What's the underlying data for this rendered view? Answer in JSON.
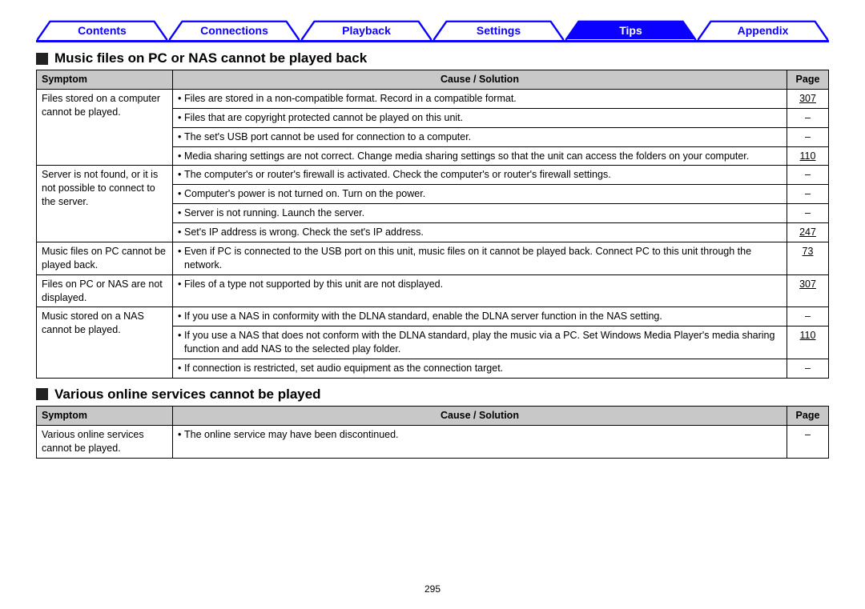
{
  "tabs": [
    {
      "label": "Contents",
      "active": false
    },
    {
      "label": "Connections",
      "active": false
    },
    {
      "label": "Playback",
      "active": false
    },
    {
      "label": "Settings",
      "active": false
    },
    {
      "label": "Tips",
      "active": true
    },
    {
      "label": "Appendix",
      "active": false
    }
  ],
  "colors": {
    "tab_stroke": "#0b00ff",
    "tab_active_fill": "#0b00ff",
    "tab_inactive_text": "#0b00ff",
    "tab_active_text": "#ffffff",
    "table_header_bg": "#c8c8c8",
    "border": "#000000"
  },
  "page_number": "295",
  "sections": [
    {
      "title": "Music files on PC or NAS cannot be played back",
      "headers": {
        "symptom": "Symptom",
        "cause": "Cause / Solution",
        "page": "Page"
      },
      "groups": [
        {
          "symptom": "Files stored on a computer cannot be played.",
          "rows": [
            {
              "cause": "Files are stored in a non-compatible format. Record in a compatible format.",
              "page": "307",
              "link": true
            },
            {
              "cause": "Files that are copyright protected cannot be played on this unit.",
              "page": "–",
              "link": false
            },
            {
              "cause": "The set's USB port cannot be used for connection to a computer.",
              "page": "–",
              "link": false
            },
            {
              "cause": "Media sharing settings are not correct. Change media sharing settings so that the unit can access the folders on your computer.",
              "page": "110",
              "link": true
            }
          ]
        },
        {
          "symptom": "Server is not found, or it is not possible to connect to the server.",
          "rows": [
            {
              "cause": "The computer's or router's firewall is activated. Check the computer's or router's firewall settings.",
              "page": "–",
              "link": false
            },
            {
              "cause": "Computer's power is not turned on. Turn on the power.",
              "page": "–",
              "link": false
            },
            {
              "cause": "Server is not running. Launch the server.",
              "page": "–",
              "link": false
            },
            {
              "cause": "Set's IP address is wrong. Check the set's IP address.",
              "page": "247",
              "link": true
            }
          ]
        },
        {
          "symptom": "Music files on PC cannot be played back.",
          "rows": [
            {
              "cause": "Even if PC is connected to the USB port on this unit, music files on it cannot be played back. Connect PC to this unit through the network.",
              "page": "73",
              "link": true
            }
          ]
        },
        {
          "symptom": "Files on PC or NAS are not displayed.",
          "rows": [
            {
              "cause": "Files of a type not supported by this unit are not displayed.",
              "page": "307",
              "link": true
            }
          ]
        },
        {
          "symptom": "Music stored on a NAS cannot be played.",
          "rows": [
            {
              "cause": "If you use a NAS in conformity with the DLNA standard, enable the DLNA server function in the NAS setting.",
              "page": "–",
              "link": false
            },
            {
              "cause": "If you use a NAS that does not conform with the DLNA standard, play the music via a PC. Set Windows Media Player's media sharing function and add NAS to the selected play folder.",
              "page": "110",
              "link": true
            },
            {
              "cause": "If connection is restricted, set audio equipment as the connection target.",
              "page": "–",
              "link": false
            }
          ]
        }
      ]
    },
    {
      "title": "Various online services cannot be played",
      "headers": {
        "symptom": "Symptom",
        "cause": "Cause / Solution",
        "page": "Page"
      },
      "groups": [
        {
          "symptom": "Various online services cannot be played.",
          "rows": [
            {
              "cause": "The online service may have been discontinued.",
              "page": "–",
              "link": false
            }
          ]
        }
      ]
    }
  ]
}
